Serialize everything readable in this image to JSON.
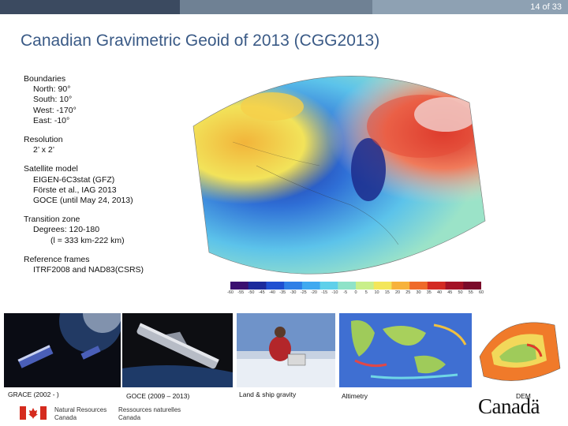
{
  "slide": {
    "page_number": "14 of 33"
  },
  "title": "Canadian Gravimetric Geoid of 2013 (CGG2013)",
  "boundaries": {
    "heading": "Boundaries",
    "north": "North: 90°",
    "south": "South: 10°",
    "west": "West: -170°",
    "east": "East: -10°"
  },
  "resolution": {
    "heading": "Resolution",
    "value": "2’ x 2’"
  },
  "satellite": {
    "heading": "Satellite model",
    "model": "EIGEN-6C3stat (GFZ)",
    "ref": "Förste et al., IAG 2013",
    "goce": "GOCE (until May 24, 2013)"
  },
  "transition": {
    "heading": "Transition zone",
    "degrees": "Degrees: 120-180",
    "lengths": "(l = 333 km-222 km)"
  },
  "frames": {
    "heading": "Reference frames",
    "value": "ITRF2008 and NAD83(CSRS)"
  },
  "colorbar": {
    "ticks": [
      "-60",
      "-55",
      "-50",
      "-45",
      "-40",
      "-35",
      "-30",
      "-25",
      "-20",
      "-15",
      "-10",
      "-5",
      "0",
      "5",
      "10",
      "15",
      "20",
      "25",
      "30",
      "35",
      "40",
      "45",
      "50",
      "55",
      "60"
    ],
    "colors": [
      "#3b0f70",
      "#1b2a9c",
      "#1f4fd1",
      "#2f7fe6",
      "#3fa9f0",
      "#5fd0ea",
      "#8fe3c8",
      "#c9ef8a",
      "#f3e65a",
      "#f7b23b",
      "#ef6a2a",
      "#d32a22",
      "#a31226",
      "#7a0a2a"
    ]
  },
  "captions": {
    "grace": "GRACE (2002 - )",
    "goce": "GOCE (2009 – 2013)",
    "land_ship": "Land & ship gravity",
    "altimetry": "Altimetry",
    "dem": "DEM"
  },
  "footer": {
    "nrcan_en_1": "Natural Resources",
    "nrcan_en_2": "Canada",
    "nrcan_fr_1": "Ressources naturelles",
    "nrcan_fr_2": "Canada",
    "wordmark": "Canadä"
  },
  "colors": {
    "title": "#3a5a86",
    "bar_dark": "#3b4a60",
    "bar_mid": "#6f8194",
    "bar_light": "#8ea1b3"
  }
}
